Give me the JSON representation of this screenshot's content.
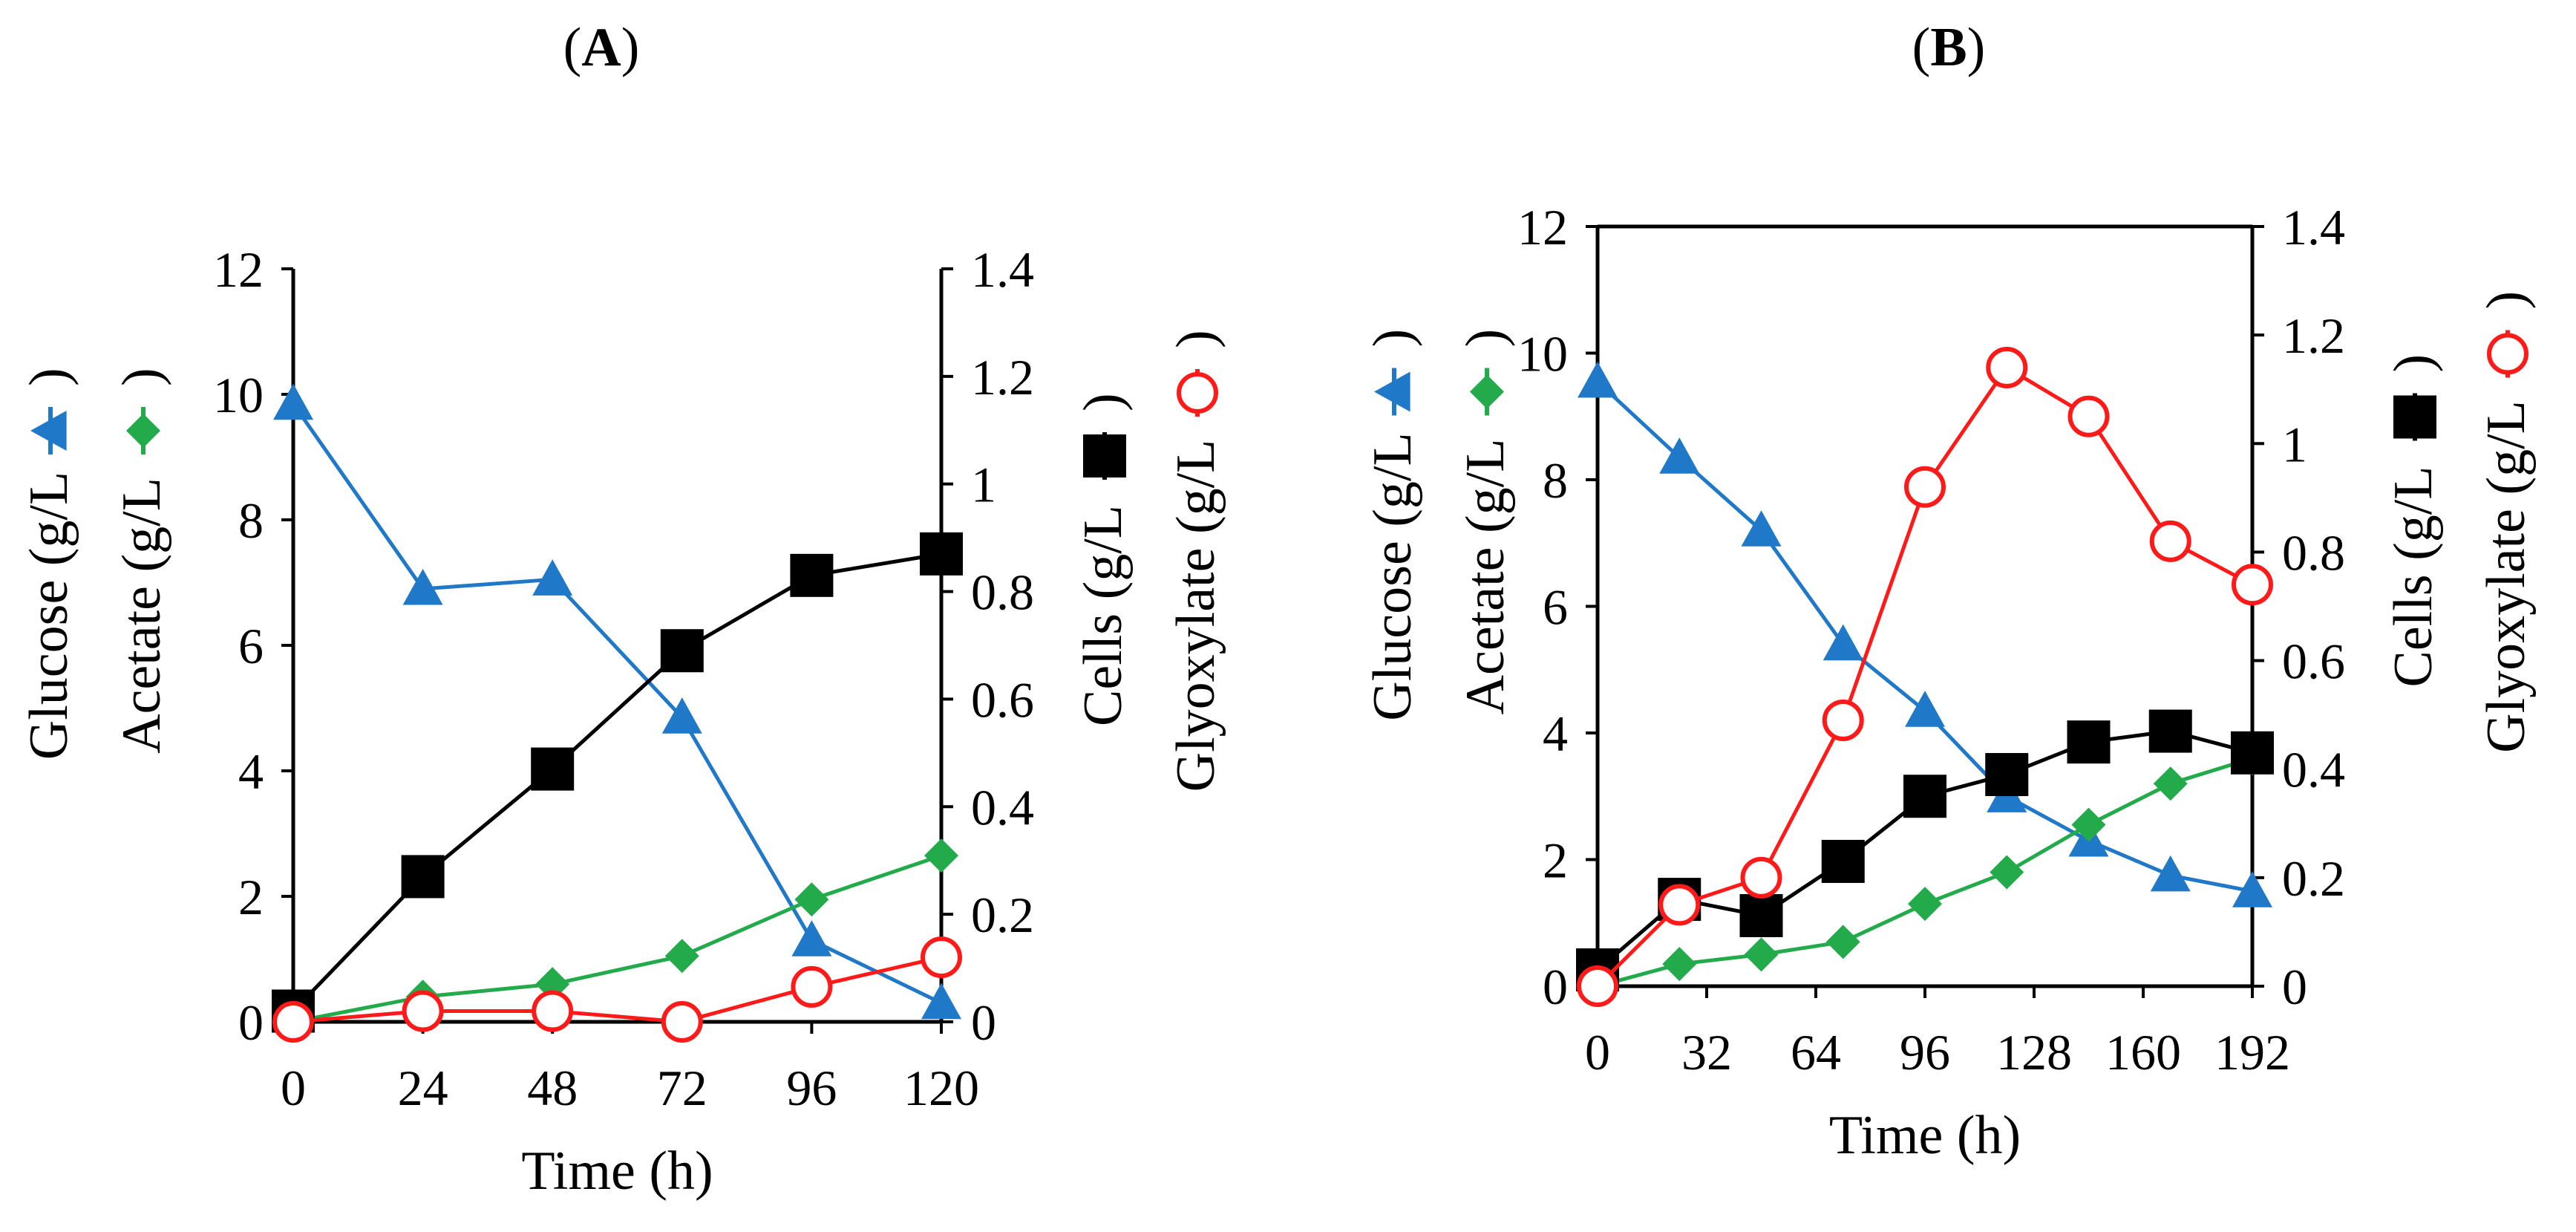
{
  "chart_data": [
    {
      "type": "line",
      "panel_label": "A",
      "xlabel": "Time (h)",
      "x": [
        0,
        24,
        48,
        72,
        96,
        120
      ],
      "xlim": [
        0,
        120
      ],
      "x_ticks": [
        0,
        24,
        48,
        72,
        96,
        120
      ],
      "left_axis": {
        "ylim": [
          0,
          12
        ],
        "ticks": [
          0,
          2,
          4,
          6,
          8,
          10,
          12
        ],
        "label_lines": [
          "Glucose (g/L",
          "Acetate (g/L"
        ],
        "label_suffixes": [
          ")",
          ")"
        ]
      },
      "right_axis": {
        "ylim": [
          0,
          1.4
        ],
        "ticks": [
          0,
          0.2,
          0.4,
          0.6,
          0.8,
          1,
          1.2,
          1.4
        ],
        "label_lines": [
          "Cells (g/L",
          "Glyoxylate (g/L"
        ],
        "label_suffixes": [
          ")",
          ")"
        ]
      },
      "series": [
        {
          "name": "Glucose",
          "axis": "left",
          "color": "#1f78c8",
          "marker": "triangle",
          "values": [
            9.85,
            6.9,
            7.05,
            4.85,
            1.3,
            0.3
          ]
        },
        {
          "name": "Acetate",
          "axis": "left",
          "color": "#22aa4b",
          "marker": "diamond",
          "values": [
            0,
            0.4,
            0.6,
            1.05,
            1.95,
            2.65
          ]
        },
        {
          "name": "Cells",
          "axis": "right",
          "color": "#000000",
          "marker": "square",
          "values": [
            0.02,
            0.27,
            0.47,
            0.69,
            0.83,
            0.87
          ]
        },
        {
          "name": "Glyoxylate",
          "axis": "right",
          "color": "#ff1a1a",
          "marker": "circle-open",
          "values": [
            0,
            0.02,
            0.02,
            0,
            0.065,
            0.12
          ]
        }
      ]
    },
    {
      "type": "line",
      "panel_label": "B",
      "xlabel": "Time (h)",
      "x": [
        0,
        24,
        48,
        72,
        96,
        120,
        144,
        168,
        192
      ],
      "xlim": [
        0,
        192
      ],
      "x_ticks": [
        0,
        32,
        64,
        96,
        128,
        160,
        192
      ],
      "left_axis": {
        "ylim": [
          0,
          12
        ],
        "ticks": [
          0,
          2,
          4,
          6,
          8,
          10,
          12
        ],
        "label_lines": [
          "Glucose (g/L",
          "Acetate (g/L"
        ],
        "label_suffixes": [
          ")",
          ")"
        ]
      },
      "right_axis": {
        "ylim": [
          0,
          1.4
        ],
        "ticks": [
          0,
          0.2,
          0.4,
          0.6,
          0.8,
          1,
          1.2,
          1.4
        ],
        "label_lines": [
          "Cells (g/L",
          "Glyoxylate (g/L"
        ],
        "label_suffixes": [
          ")",
          ")"
        ]
      },
      "series": [
        {
          "name": "Glucose",
          "axis": "left",
          "color": "#1f78c8",
          "marker": "triangle",
          "values": [
            9.55,
            8.35,
            7.2,
            5.4,
            4.35,
            3,
            2.3,
            1.75,
            1.5
          ]
        },
        {
          "name": "Acetate",
          "axis": "left",
          "color": "#22aa4b",
          "marker": "diamond",
          "values": [
            0,
            0.35,
            0.5,
            0.7,
            1.3,
            1.8,
            2.55,
            3.2,
            3.6
          ]
        },
        {
          "name": "Cells",
          "axis": "right",
          "color": "#000000",
          "marker": "square",
          "values": [
            0.03,
            0.16,
            0.13,
            0.23,
            0.35,
            0.39,
            0.45,
            0.47,
            0.43
          ]
        },
        {
          "name": "Glyoxylate",
          "axis": "right",
          "color": "#ff1a1a",
          "marker": "circle-open",
          "values": [
            0,
            0.15,
            0.2,
            0.49,
            0.92,
            1.14,
            1.05,
            0.82,
            0.74
          ]
        }
      ]
    }
  ]
}
